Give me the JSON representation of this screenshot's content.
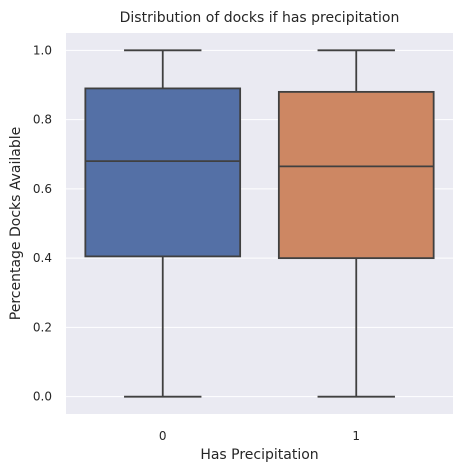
{
  "chart_data": {
    "type": "boxplot",
    "title": "Distribution of docks if has precipitation",
    "xlabel": "Has Precipitation",
    "ylabel": "Percentage Docks Available",
    "categories": [
      "0",
      "1"
    ],
    "boxes": [
      {
        "category": "0",
        "whisker_low": 0.0,
        "q1": 0.405,
        "median": 0.68,
        "q3": 0.89,
        "whisker_high": 1.0,
        "color": "#5470a6"
      },
      {
        "category": "1",
        "whisker_low": 0.0,
        "q1": 0.4,
        "median": 0.665,
        "q3": 0.88,
        "whisker_high": 1.0,
        "color": "#cd8763"
      }
    ],
    "ylim": [
      -0.05,
      1.05
    ],
    "yticks": [
      0.0,
      0.2,
      0.4,
      0.6,
      0.8,
      1.0
    ],
    "ytick_labels": [
      "0.0",
      "0.2",
      "0.4",
      "0.6",
      "0.8",
      "1.0"
    ],
    "grid": true,
    "background_color": "#eaeaf2",
    "line_color": "#404040"
  }
}
